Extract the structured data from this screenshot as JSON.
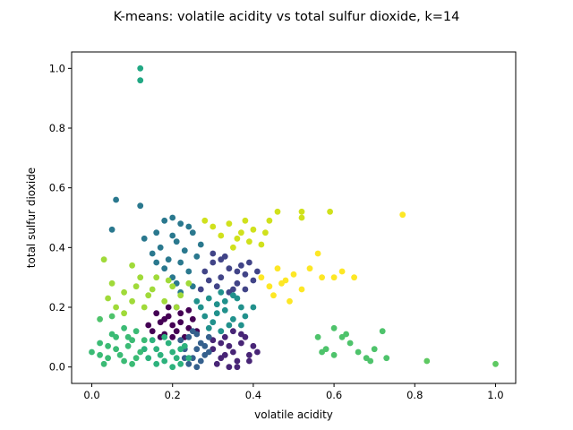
{
  "chart_data": {
    "type": "scatter",
    "title": "K-means: volatile acidity vs total sulfur dioxide, k=14",
    "xlabel": "volatile acidity",
    "ylabel": "total sulfur dioxide",
    "xlim": [
      -0.05,
      1.05
    ],
    "ylim": [
      -0.055,
      1.055
    ],
    "xticks": [
      0.0,
      0.2,
      0.4,
      0.6,
      0.8,
      1.0
    ],
    "yticks": [
      0.0,
      0.2,
      0.4,
      0.6,
      0.8,
      1.0
    ],
    "xtick_labels": [
      "0.0",
      "0.2",
      "0.4",
      "0.6",
      "0.8",
      "1.0"
    ],
    "ytick_labels": [
      "0.0",
      "0.2",
      "0.4",
      "0.6",
      "0.8",
      "1.0"
    ],
    "grid": false,
    "colormap": "viridis",
    "series": [
      {
        "cluster": 0,
        "color": "#440154",
        "points": [
          [
            0.15,
            0.12
          ],
          [
            0.17,
            0.15
          ],
          [
            0.19,
            0.17
          ],
          [
            0.2,
            0.14
          ],
          [
            0.22,
            0.18
          ],
          [
            0.24,
            0.13
          ],
          [
            0.18,
            0.11
          ],
          [
            0.21,
            0.12
          ],
          [
            0.25,
            0.16
          ],
          [
            0.16,
            0.18
          ],
          [
            0.23,
            0.1
          ],
          [
            0.19,
            0.2
          ],
          [
            0.14,
            0.14
          ],
          [
            0.26,
            0.12
          ],
          [
            0.2,
            0.1
          ],
          [
            0.17,
            0.1
          ],
          [
            0.22,
            0.15
          ],
          [
            0.24,
            0.19
          ],
          [
            0.18,
            0.16
          ],
          [
            0.21,
            0.2
          ]
        ]
      },
      {
        "cluster": 1,
        "color": "#482576",
        "points": [
          [
            0.3,
            0.06
          ],
          [
            0.32,
            0.03
          ],
          [
            0.35,
            0.05
          ],
          [
            0.37,
            0.08
          ],
          [
            0.33,
            0.1
          ],
          [
            0.36,
            0.02
          ],
          [
            0.39,
            0.04
          ],
          [
            0.34,
            0.07
          ],
          [
            0.31,
            0.01
          ],
          [
            0.38,
            0.1
          ],
          [
            0.35,
            0.12
          ],
          [
            0.32,
            0.08
          ],
          [
            0.4,
            0.07
          ],
          [
            0.36,
            0.0
          ],
          [
            0.33,
            0.04
          ],
          [
            0.37,
            0.11
          ],
          [
            0.3,
            0.09
          ],
          [
            0.39,
            0.02
          ],
          [
            0.34,
            0.0
          ],
          [
            0.41,
            0.05
          ]
        ]
      },
      {
        "cluster": 2,
        "color": "#414487",
        "points": [
          [
            0.28,
            0.32
          ],
          [
            0.3,
            0.35
          ],
          [
            0.32,
            0.3
          ],
          [
            0.34,
            0.33
          ],
          [
            0.36,
            0.28
          ],
          [
            0.38,
            0.31
          ],
          [
            0.33,
            0.37
          ],
          [
            0.35,
            0.26
          ],
          [
            0.39,
            0.35
          ],
          [
            0.31,
            0.27
          ],
          [
            0.37,
            0.34
          ],
          [
            0.29,
            0.29
          ],
          [
            0.4,
            0.29
          ],
          [
            0.34,
            0.25
          ],
          [
            0.32,
            0.36
          ],
          [
            0.3,
            0.38
          ],
          [
            0.38,
            0.26
          ],
          [
            0.36,
            0.32
          ],
          [
            0.27,
            0.26
          ],
          [
            0.41,
            0.32
          ]
        ]
      },
      {
        "cluster": 3,
        "color": "#35608d",
        "points": [
          [
            0.23,
            0.06
          ],
          [
            0.25,
            0.03
          ],
          [
            0.27,
            0.08
          ],
          [
            0.26,
            0.11
          ],
          [
            0.24,
            0.01
          ],
          [
            0.28,
            0.04
          ],
          [
            0.22,
            0.09
          ],
          [
            0.26,
            0.06
          ],
          [
            0.29,
            0.1
          ],
          [
            0.25,
            0.12
          ],
          [
            0.27,
            0.02
          ],
          [
            0.23,
            0.03
          ],
          [
            0.28,
            0.07
          ],
          [
            0.24,
            0.1
          ],
          [
            0.26,
            0.0
          ],
          [
            0.29,
            0.05
          ]
        ]
      },
      {
        "cluster": 4,
        "color": "#2a788e",
        "points": [
          [
            0.06,
            0.56
          ],
          [
            0.12,
            0.54
          ],
          [
            0.05,
            0.46
          ],
          [
            0.13,
            0.43
          ],
          [
            0.18,
            0.49
          ],
          [
            0.2,
            0.5
          ],
          [
            0.22,
            0.48
          ],
          [
            0.24,
            0.47
          ],
          [
            0.16,
            0.45
          ],
          [
            0.2,
            0.44
          ],
          [
            0.15,
            0.38
          ],
          [
            0.17,
            0.4
          ],
          [
            0.19,
            0.36
          ],
          [
            0.21,
            0.42
          ],
          [
            0.23,
            0.39
          ],
          [
            0.25,
            0.45
          ],
          [
            0.18,
            0.33
          ],
          [
            0.2,
            0.3
          ],
          [
            0.22,
            0.35
          ],
          [
            0.24,
            0.32
          ],
          [
            0.26,
            0.37
          ],
          [
            0.21,
            0.28
          ],
          [
            0.16,
            0.35
          ],
          [
            0.25,
            0.27
          ],
          [
            0.27,
            0.41
          ],
          [
            0.22,
            0.25
          ]
        ]
      },
      {
        "cluster": 5,
        "color": "#21918c",
        "points": [
          [
            0.27,
            0.2
          ],
          [
            0.29,
            0.23
          ],
          [
            0.31,
            0.18
          ],
          [
            0.33,
            0.22
          ],
          [
            0.35,
            0.16
          ],
          [
            0.37,
            0.2
          ],
          [
            0.3,
            0.15
          ],
          [
            0.32,
            0.25
          ],
          [
            0.34,
            0.14
          ],
          [
            0.36,
            0.23
          ],
          [
            0.28,
            0.17
          ],
          [
            0.38,
            0.17
          ],
          [
            0.31,
            0.21
          ],
          [
            0.33,
            0.19
          ],
          [
            0.35,
            0.24
          ],
          [
            0.29,
            0.13
          ],
          [
            0.26,
            0.22
          ],
          [
            0.37,
            0.14
          ],
          [
            0.4,
            0.2
          ],
          [
            0.32,
            0.12
          ]
        ]
      },
      {
        "cluster": 6,
        "color": "#22a884",
        "points": [
          [
            0.12,
            1.0
          ],
          [
            0.12,
            0.96
          ]
        ]
      },
      {
        "cluster": 7,
        "color": "#2db27d",
        "points": [
          [
            0.14,
            0.03
          ],
          [
            0.16,
            0.06
          ],
          [
            0.18,
            0.02
          ],
          [
            0.2,
            0.05
          ],
          [
            0.22,
            0.01
          ],
          [
            0.15,
            0.09
          ],
          [
            0.17,
            0.04
          ],
          [
            0.19,
            0.08
          ],
          [
            0.21,
            0.03
          ],
          [
            0.23,
            0.07
          ],
          [
            0.16,
            0.01
          ],
          [
            0.18,
            0.1
          ],
          [
            0.2,
            0.0
          ],
          [
            0.22,
            0.06
          ],
          [
            0.13,
            0.06
          ],
          [
            0.24,
            0.03
          ]
        ]
      },
      {
        "cluster": 8,
        "color": "#3bbb75",
        "points": [
          [
            0.0,
            0.05
          ],
          [
            0.02,
            0.08
          ],
          [
            0.04,
            0.03
          ],
          [
            0.06,
            0.06
          ],
          [
            0.08,
            0.02
          ],
          [
            0.1,
            0.09
          ],
          [
            0.05,
            0.11
          ],
          [
            0.07,
            0.04
          ],
          [
            0.09,
            0.07
          ],
          [
            0.11,
            0.12
          ],
          [
            0.03,
            0.01
          ],
          [
            0.12,
            0.05
          ],
          [
            0.08,
            0.13
          ],
          [
            0.1,
            0.01
          ],
          [
            0.06,
            0.1
          ],
          [
            0.04,
            0.07
          ],
          [
            0.13,
            0.09
          ],
          [
            0.02,
            0.04
          ],
          [
            0.11,
            0.03
          ],
          [
            0.09,
            0.1
          ]
        ]
      },
      {
        "cluster": 9,
        "color": "#4ec36b",
        "points": [
          [
            0.02,
            0.16
          ],
          [
            0.05,
            0.17
          ],
          [
            0.6,
            0.13
          ],
          [
            0.62,
            0.1
          ],
          [
            0.64,
            0.08
          ],
          [
            0.66,
            0.05
          ],
          [
            0.68,
            0.03
          ],
          [
            0.7,
            0.06
          ],
          [
            0.72,
            0.12
          ],
          [
            0.73,
            0.03
          ],
          [
            0.58,
            0.06
          ],
          [
            0.6,
            0.04
          ],
          [
            0.56,
            0.1
          ],
          [
            0.63,
            0.11
          ],
          [
            0.69,
            0.02
          ],
          [
            0.57,
            0.05
          ]
        ]
      },
      {
        "cluster": 10,
        "color": "#5ec962",
        "points": [
          [
            0.83,
            0.02
          ],
          [
            1.0,
            0.01
          ]
        ]
      },
      {
        "cluster": 11,
        "color": "#a0da39",
        "points": [
          [
            0.03,
            0.36
          ],
          [
            0.05,
            0.28
          ],
          [
            0.1,
            0.34
          ],
          [
            0.12,
            0.3
          ],
          [
            0.15,
            0.26
          ],
          [
            0.18,
            0.22
          ],
          [
            0.2,
            0.27
          ],
          [
            0.22,
            0.24
          ],
          [
            0.24,
            0.28
          ],
          [
            0.16,
            0.3
          ],
          [
            0.08,
            0.25
          ],
          [
            0.1,
            0.22
          ],
          [
            0.13,
            0.2
          ],
          [
            0.06,
            0.2
          ],
          [
            0.04,
            0.23
          ],
          [
            0.08,
            0.18
          ],
          [
            0.14,
            0.24
          ],
          [
            0.19,
            0.29
          ],
          [
            0.21,
            0.2
          ],
          [
            0.11,
            0.27
          ]
        ]
      },
      {
        "cluster": 12,
        "color": "#d0e11c",
        "points": [
          [
            0.28,
            0.49
          ],
          [
            0.3,
            0.47
          ],
          [
            0.32,
            0.44
          ],
          [
            0.34,
            0.48
          ],
          [
            0.36,
            0.43
          ],
          [
            0.38,
            0.49
          ],
          [
            0.4,
            0.46
          ],
          [
            0.42,
            0.41
          ],
          [
            0.44,
            0.49
          ],
          [
            0.46,
            0.52
          ],
          [
            0.52,
            0.52
          ],
          [
            0.52,
            0.5
          ],
          [
            0.59,
            0.52
          ],
          [
            0.35,
            0.4
          ],
          [
            0.37,
            0.45
          ],
          [
            0.39,
            0.42
          ],
          [
            0.43,
            0.45
          ]
        ]
      },
      {
        "cluster": 13,
        "color": "#fde725",
        "points": [
          [
            0.42,
            0.3
          ],
          [
            0.44,
            0.27
          ],
          [
            0.46,
            0.33
          ],
          [
            0.48,
            0.29
          ],
          [
            0.5,
            0.31
          ],
          [
            0.52,
            0.26
          ],
          [
            0.54,
            0.33
          ],
          [
            0.56,
            0.38
          ],
          [
            0.57,
            0.3
          ],
          [
            0.6,
            0.3
          ],
          [
            0.62,
            0.32
          ],
          [
            0.65,
            0.3
          ],
          [
            0.77,
            0.51
          ],
          [
            0.45,
            0.24
          ],
          [
            0.47,
            0.28
          ],
          [
            0.49,
            0.22
          ]
        ]
      }
    ]
  }
}
